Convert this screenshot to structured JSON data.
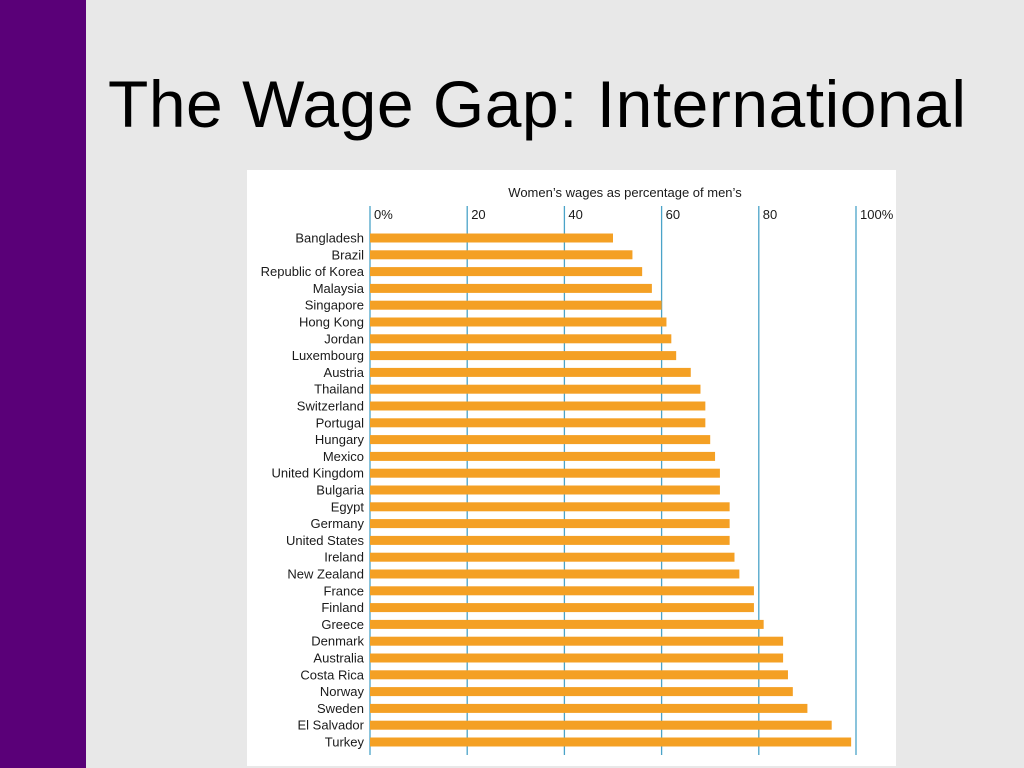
{
  "slide": {
    "title": "The Wage Gap: International",
    "sidebar_color": "#5a0078"
  },
  "chart_data": {
    "type": "bar",
    "orientation": "horizontal",
    "title": "Women’s wages as percentage of men’s",
    "xlim": [
      0,
      100
    ],
    "ticks": [
      0,
      20,
      40,
      60,
      80,
      100
    ],
    "tick_labels": [
      "0%",
      "20",
      "40",
      "60",
      "80",
      "100%"
    ],
    "grid": true,
    "bar_color": "#f4a024",
    "grid_color": "#4aa3c8",
    "categories": [
      "Bangladesh",
      "Brazil",
      "Republic of Korea",
      "Malaysia",
      "Singapore",
      "Hong Kong",
      "Jordan",
      "Luxembourg",
      "Austria",
      "Thailand",
      "Switzerland",
      "Portugal",
      "Hungary",
      "Mexico",
      "United Kingdom",
      "Bulgaria",
      "Egypt",
      "Germany",
      "United States",
      "Ireland",
      "New Zealand",
      "France",
      "Finland",
      "Greece",
      "Denmark",
      "Australia",
      "Costa Rica",
      "Norway",
      "Sweden",
      "El Salvador",
      "Turkey"
    ],
    "values": [
      50,
      54,
      56,
      58,
      60,
      61,
      62,
      63,
      66,
      68,
      69,
      69,
      70,
      71,
      72,
      72,
      74,
      74,
      74,
      75,
      76,
      79,
      79,
      81,
      85,
      85,
      86,
      87,
      90,
      95,
      99
    ]
  }
}
